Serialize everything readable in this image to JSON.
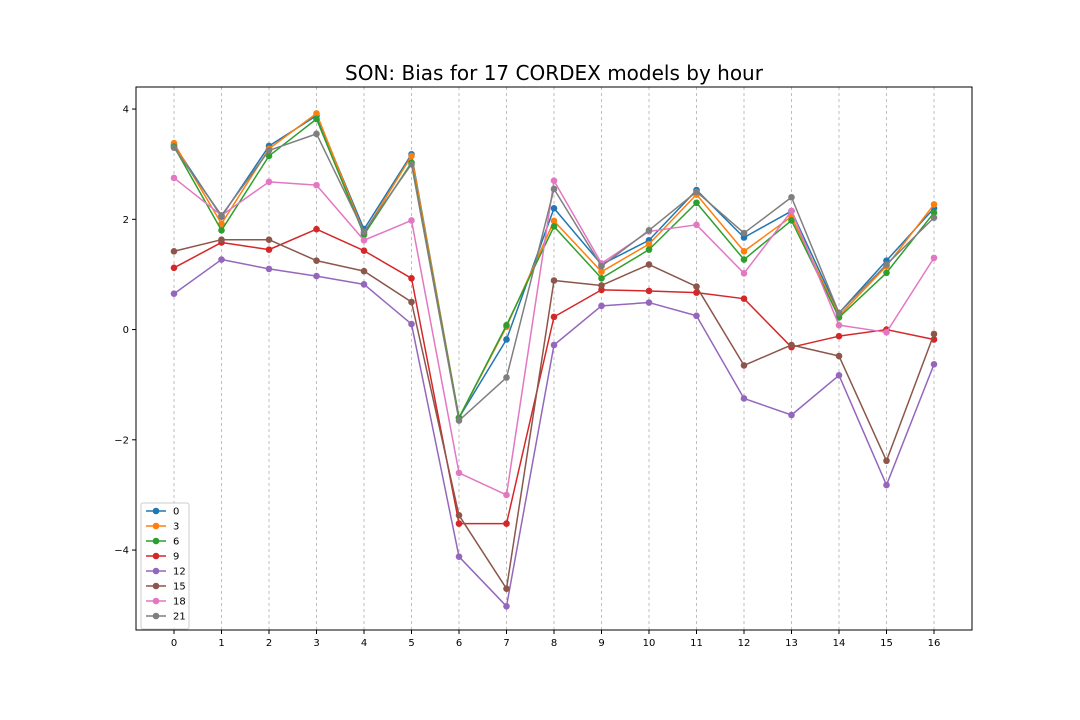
{
  "chart_data": {
    "type": "line",
    "title": "SON: Bias for 17 CORDEX models by hour",
    "xlabel": "",
    "ylabel": "",
    "x": [
      0,
      1,
      2,
      3,
      4,
      5,
      6,
      7,
      8,
      9,
      10,
      11,
      12,
      13,
      14,
      15,
      16
    ],
    "xlim": [
      -0.8,
      16.8
    ],
    "ylim": [
      -5.45,
      4.4
    ],
    "yticks": [
      -4,
      -2,
      0,
      2,
      4
    ],
    "ytick_labels": [
      "−4",
      "−2",
      "0",
      "2",
      "4"
    ],
    "grid": "vertical dashed",
    "legend_position": "lower-left",
    "series": [
      {
        "name": "0",
        "color": "#1f77b4",
        "values": [
          3.35,
          2.05,
          3.33,
          3.88,
          1.82,
          3.18,
          -1.6,
          -0.18,
          2.2,
          1.18,
          1.62,
          2.53,
          1.67,
          2.15,
          0.3,
          1.25,
          2.2
        ]
      },
      {
        "name": "3",
        "color": "#ff7f0e",
        "values": [
          3.38,
          1.92,
          3.28,
          3.92,
          1.75,
          3.15,
          -1.6,
          0.05,
          1.97,
          1.05,
          1.55,
          2.45,
          1.42,
          2.05,
          0.25,
          1.15,
          2.27
        ]
      },
      {
        "name": "6",
        "color": "#2ca02c",
        "values": [
          3.32,
          1.8,
          3.15,
          3.82,
          1.72,
          3.03,
          -1.6,
          0.08,
          1.87,
          0.93,
          1.45,
          2.3,
          1.27,
          1.98,
          0.22,
          1.03,
          2.12
        ]
      },
      {
        "name": "9",
        "color": "#d62728",
        "values": [
          1.12,
          1.58,
          1.45,
          1.82,
          1.43,
          0.93,
          -3.52,
          -3.52,
          0.23,
          0.72,
          0.7,
          0.67,
          0.56,
          -0.32,
          -0.12,
          0.0,
          -0.18
        ]
      },
      {
        "name": "12",
        "color": "#9467bd",
        "values": [
          0.65,
          1.27,
          1.1,
          0.97,
          0.82,
          0.1,
          -4.12,
          -5.02,
          -0.28,
          0.43,
          0.49,
          0.25,
          -1.25,
          -1.55,
          -0.83,
          -2.82,
          -0.63
        ]
      },
      {
        "name": "15",
        "color": "#8c564b",
        "values": [
          1.42,
          1.63,
          1.63,
          1.25,
          1.06,
          0.5,
          -3.37,
          -4.7,
          0.89,
          0.8,
          1.18,
          0.78,
          -0.65,
          -0.28,
          -0.48,
          -2.38,
          -0.08
        ]
      },
      {
        "name": "18",
        "color": "#e377c2",
        "values": [
          2.75,
          2.07,
          2.68,
          2.62,
          1.62,
          1.98,
          -2.6,
          -3.0,
          2.7,
          1.2,
          1.78,
          1.9,
          1.02,
          2.15,
          0.08,
          -0.05,
          1.3
        ]
      },
      {
        "name": "21",
        "color": "#7f7f7f",
        "values": [
          3.3,
          2.07,
          3.25,
          3.55,
          1.77,
          3.0,
          -1.65,
          -0.87,
          2.55,
          1.15,
          1.8,
          2.5,
          1.75,
          2.4,
          0.3,
          1.18,
          2.03
        ]
      }
    ]
  }
}
